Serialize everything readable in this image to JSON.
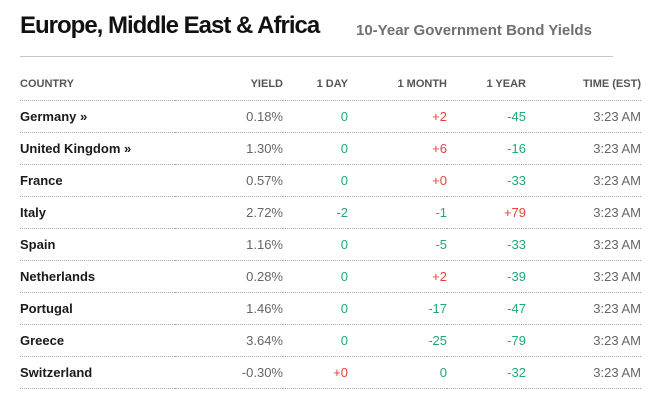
{
  "header": {
    "region_title": "Europe, Middle East & Africa",
    "subtitle": "10-Year Government Bond Yields"
  },
  "table": {
    "columns": [
      "COUNTRY",
      "YIELD",
      "1 DAY",
      "1 MONTH",
      "1 YEAR",
      "TIME (EST)"
    ],
    "rows": [
      {
        "country": "Germany »",
        "linked": true,
        "yield": "0.18%",
        "day": "0",
        "day_dir": "zero",
        "month": "+2",
        "month_dir": "pos",
        "year": "-45",
        "year_dir": "neg",
        "time": "3:23 AM"
      },
      {
        "country": "United Kingdom »",
        "linked": true,
        "yield": "1.30%",
        "day": "0",
        "day_dir": "zero",
        "month": "+6",
        "month_dir": "pos",
        "year": "-16",
        "year_dir": "neg",
        "time": "3:23 AM"
      },
      {
        "country": "France",
        "linked": false,
        "yield": "0.57%",
        "day": "0",
        "day_dir": "zero",
        "month": "+0",
        "month_dir": "pos",
        "year": "-33",
        "year_dir": "neg",
        "time": "3:23 AM"
      },
      {
        "country": "Italy",
        "linked": false,
        "yield": "2.72%",
        "day": "-2",
        "day_dir": "neg",
        "month": "-1",
        "month_dir": "neg",
        "year": "+79",
        "year_dir": "pos",
        "time": "3:23 AM"
      },
      {
        "country": "Spain",
        "linked": false,
        "yield": "1.16%",
        "day": "0",
        "day_dir": "zero",
        "month": "-5",
        "month_dir": "neg",
        "year": "-33",
        "year_dir": "neg",
        "time": "3:23 AM"
      },
      {
        "country": "Netherlands",
        "linked": false,
        "yield": "0.28%",
        "day": "0",
        "day_dir": "zero",
        "month": "+2",
        "month_dir": "pos",
        "year": "-39",
        "year_dir": "neg",
        "time": "3:23 AM"
      },
      {
        "country": "Portugal",
        "linked": false,
        "yield": "1.46%",
        "day": "0",
        "day_dir": "zero",
        "month": "-17",
        "month_dir": "neg",
        "year": "-47",
        "year_dir": "neg",
        "time": "3:23 AM"
      },
      {
        "country": "Greece",
        "linked": false,
        "yield": "3.64%",
        "day": "0",
        "day_dir": "zero",
        "month": "-25",
        "month_dir": "neg",
        "year": "-79",
        "year_dir": "neg",
        "time": "3:23 AM"
      },
      {
        "country": "Switzerland",
        "linked": false,
        "yield": "-0.30%",
        "day": "+0",
        "day_dir": "pos",
        "month": "0",
        "month_dir": "zero",
        "year": "-32",
        "year_dir": "neg",
        "time": "3:23 AM"
      }
    ]
  },
  "colors": {
    "positive": "#e0463a",
    "negative": "#20a87a",
    "text": "#1a1a1a",
    "muted": "#666666"
  }
}
